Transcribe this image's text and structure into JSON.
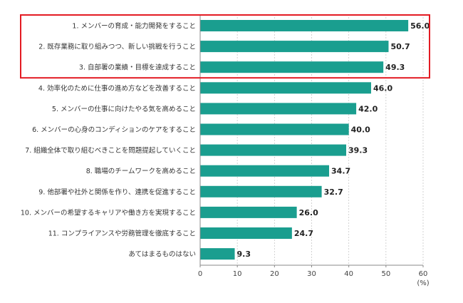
{
  "chart_data": {
    "type": "bar",
    "orientation": "horizontal",
    "categories": [
      "1. メンバーの育成・能力開発をすること",
      "2. 既存業務に取り組みつつ、新しい挑戦を行うこと",
      "3. 自部署の業績・目標を達成すること",
      "4. 効率化のために仕事の進め方などを改善すること",
      "5. メンバーの仕事に向けたやる気を高めること",
      "6. メンバーの心身のコンディションのケアをすること",
      "7. 組織全体で取り組むべきことを問題提起していくこと",
      "8. 職場のチームワークを高めること",
      "9. 他部署や社外と関係を作り、連携を促進すること",
      "10. メンバーの希望するキャリアや働き方を実現すること",
      "11. コンプライアンスや労務管理を徹底すること",
      "あてはまるものはない"
    ],
    "values": [
      56.0,
      50.7,
      49.3,
      46.0,
      42.0,
      40.0,
      39.3,
      34.7,
      32.7,
      26.0,
      24.7,
      9.3
    ],
    "value_labels": [
      "56.0",
      "50.7",
      "49.3",
      "46.0",
      "42.0",
      "40.0",
      "39.3",
      "34.7",
      "32.7",
      "26.0",
      "24.7",
      "9.3"
    ],
    "xlim": [
      0,
      60
    ],
    "xticks": [
      "0",
      "10",
      "20",
      "30",
      "40",
      "50",
      "60"
    ],
    "unit": "(%)",
    "grid": "vertical-dashed",
    "highlight_top_n": 3,
    "bar_color": "#1a9e8f",
    "highlight_color": "#e31b23"
  }
}
